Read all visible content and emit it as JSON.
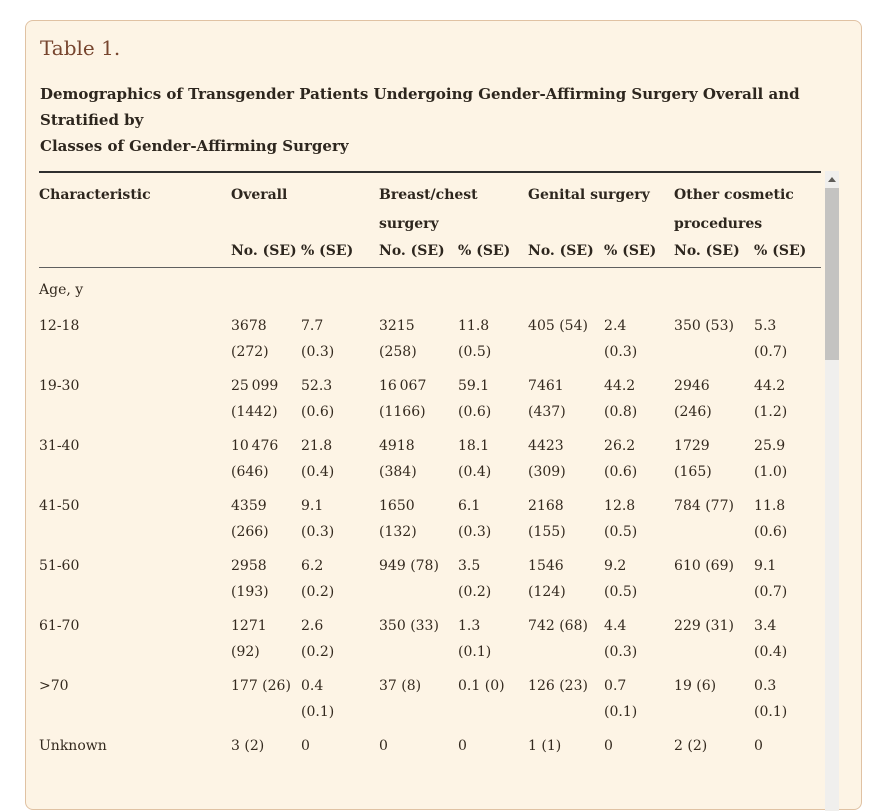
{
  "card": {
    "table_label": "Table 1.",
    "caption": "Demographics of Transgender Patients Undergoing Gender-Affirming Surgery Overall and Stratified by\nClasses of Gender-Affirming Surgery",
    "background_color": "#fdf4e5",
    "border_color": "#e0c2a3",
    "title_color": "#77452e"
  },
  "table": {
    "characteristic_header": "Characteristic",
    "groups": [
      {
        "label": "Overall"
      },
      {
        "label": "Breast/chest surgery"
      },
      {
        "label": "Genital surgery"
      },
      {
        "label": "Other cosmetic procedures"
      }
    ],
    "subheaders": {
      "no": "No. (SE)",
      "pct": "% (SE)"
    },
    "rows": [
      {
        "section": true,
        "label": "Age, y"
      },
      {
        "label": "12-18",
        "cells": [
          "3678\n(272)",
          "7.7\n(0.3)",
          "3215\n(258)",
          "11.8\n(0.5)",
          "405 (54)",
          "2.4\n(0.3)",
          "350 (53)",
          "5.3 (0.7)"
        ]
      },
      {
        "label": "19-30",
        "cells": [
          "25 099\n(1442)",
          "52.3\n(0.6)",
          "16 067\n(1166)",
          "59.1\n(0.6)",
          "7461\n(437)",
          "44.2\n(0.8)",
          "2946\n(246)",
          "44.2\n(1.2)"
        ]
      },
      {
        "label": "31-40",
        "cells": [
          "10 476\n(646)",
          "21.8\n(0.4)",
          "4918\n(384)",
          "18.1\n(0.4)",
          "4423\n(309)",
          "26.2\n(0.6)",
          "1729\n(165)",
          "25.9\n(1.0)"
        ]
      },
      {
        "label": "41-50",
        "cells": [
          "4359\n(266)",
          "9.1\n(0.3)",
          "1650\n(132)",
          "6.1\n(0.3)",
          "2168\n(155)",
          "12.8\n(0.5)",
          "784 (77)",
          "11.8\n(0.6)"
        ]
      },
      {
        "label": "51-60",
        "cells": [
          "2958\n(193)",
          "6.2\n(0.2)",
          "949 (78)",
          "3.5\n(0.2)",
          "1546\n(124)",
          "9.2\n(0.5)",
          "610 (69)",
          "9.1 (0.7)"
        ]
      },
      {
        "label": "61-70",
        "cells": [
          "1271\n(92)",
          "2.6\n(0.2)",
          "350 (33)",
          "1.3\n(0.1)",
          "742 (68)",
          "4.4\n(0.3)",
          "229 (31)",
          "3.4 (0.4)"
        ]
      },
      {
        "label": ">70",
        "cells": [
          "177 (26)",
          "0.4\n(0.1)",
          "37 (8)",
          "0.1 (0)",
          "126 (23)",
          "0.7\n(0.1)",
          "19 (6)",
          "0.3 (0.1)"
        ]
      },
      {
        "label": "Unknown",
        "cells": [
          "3 (2)",
          "0",
          "0",
          "0",
          "1 (1)",
          "0",
          "2 (2)",
          "0"
        ]
      }
    ]
  },
  "scrollbar": {
    "track_color": "#f0efed",
    "thumb_color": "#c4c3c1"
  }
}
